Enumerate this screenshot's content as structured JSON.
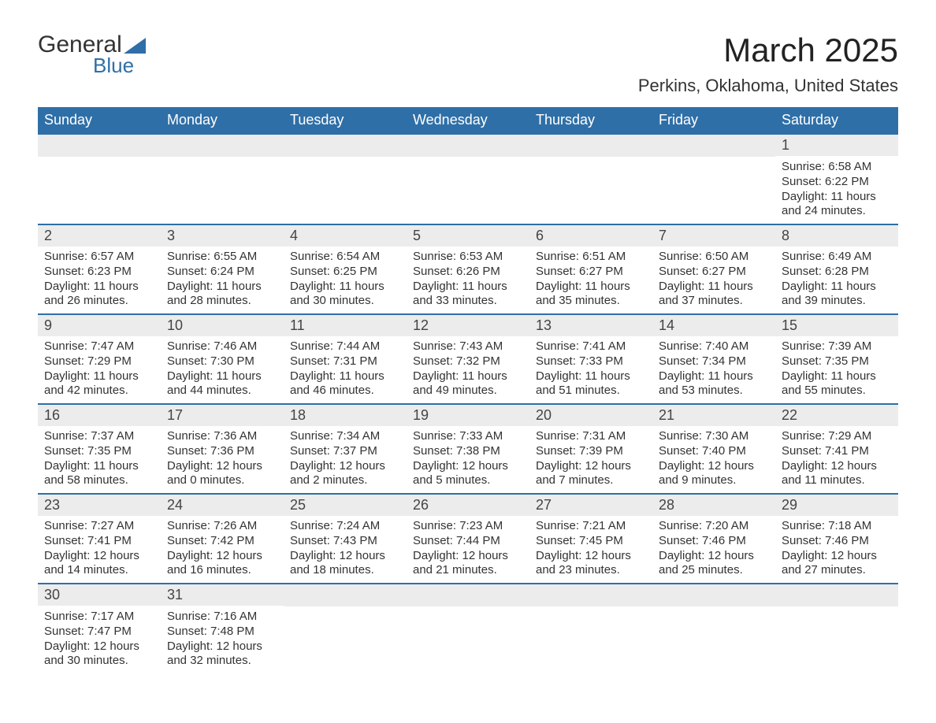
{
  "logo": {
    "text1": "General",
    "text2": "Blue",
    "accent_color": "#2f6fa7"
  },
  "header": {
    "month_title": "March 2025",
    "location": "Perkins, Oklahoma, United States"
  },
  "colors": {
    "header_bg": "#2f6fa7",
    "header_fg": "#ffffff",
    "daynum_bg": "#ececec",
    "text": "#333333",
    "border": "#2f6fa7",
    "page_bg": "#ffffff"
  },
  "typography": {
    "month_title_fontsize": 42,
    "subtitle_fontsize": 22,
    "weekday_fontsize": 18,
    "daynum_fontsize": 18,
    "body_fontsize": 15
  },
  "calendar": {
    "type": "table",
    "weekdays": [
      "Sunday",
      "Monday",
      "Tuesday",
      "Wednesday",
      "Thursday",
      "Friday",
      "Saturday"
    ],
    "weeks": [
      [
        null,
        null,
        null,
        null,
        null,
        null,
        {
          "n": "1",
          "sunrise": "Sunrise: 6:58 AM",
          "sunset": "Sunset: 6:22 PM",
          "daylight": "Daylight: 11 hours and 24 minutes."
        }
      ],
      [
        {
          "n": "2",
          "sunrise": "Sunrise: 6:57 AM",
          "sunset": "Sunset: 6:23 PM",
          "daylight": "Daylight: 11 hours and 26 minutes."
        },
        {
          "n": "3",
          "sunrise": "Sunrise: 6:55 AM",
          "sunset": "Sunset: 6:24 PM",
          "daylight": "Daylight: 11 hours and 28 minutes."
        },
        {
          "n": "4",
          "sunrise": "Sunrise: 6:54 AM",
          "sunset": "Sunset: 6:25 PM",
          "daylight": "Daylight: 11 hours and 30 minutes."
        },
        {
          "n": "5",
          "sunrise": "Sunrise: 6:53 AM",
          "sunset": "Sunset: 6:26 PM",
          "daylight": "Daylight: 11 hours and 33 minutes."
        },
        {
          "n": "6",
          "sunrise": "Sunrise: 6:51 AM",
          "sunset": "Sunset: 6:27 PM",
          "daylight": "Daylight: 11 hours and 35 minutes."
        },
        {
          "n": "7",
          "sunrise": "Sunrise: 6:50 AM",
          "sunset": "Sunset: 6:27 PM",
          "daylight": "Daylight: 11 hours and 37 minutes."
        },
        {
          "n": "8",
          "sunrise": "Sunrise: 6:49 AM",
          "sunset": "Sunset: 6:28 PM",
          "daylight": "Daylight: 11 hours and 39 minutes."
        }
      ],
      [
        {
          "n": "9",
          "sunrise": "Sunrise: 7:47 AM",
          "sunset": "Sunset: 7:29 PM",
          "daylight": "Daylight: 11 hours and 42 minutes."
        },
        {
          "n": "10",
          "sunrise": "Sunrise: 7:46 AM",
          "sunset": "Sunset: 7:30 PM",
          "daylight": "Daylight: 11 hours and 44 minutes."
        },
        {
          "n": "11",
          "sunrise": "Sunrise: 7:44 AM",
          "sunset": "Sunset: 7:31 PM",
          "daylight": "Daylight: 11 hours and 46 minutes."
        },
        {
          "n": "12",
          "sunrise": "Sunrise: 7:43 AM",
          "sunset": "Sunset: 7:32 PM",
          "daylight": "Daylight: 11 hours and 49 minutes."
        },
        {
          "n": "13",
          "sunrise": "Sunrise: 7:41 AM",
          "sunset": "Sunset: 7:33 PM",
          "daylight": "Daylight: 11 hours and 51 minutes."
        },
        {
          "n": "14",
          "sunrise": "Sunrise: 7:40 AM",
          "sunset": "Sunset: 7:34 PM",
          "daylight": "Daylight: 11 hours and 53 minutes."
        },
        {
          "n": "15",
          "sunrise": "Sunrise: 7:39 AM",
          "sunset": "Sunset: 7:35 PM",
          "daylight": "Daylight: 11 hours and 55 minutes."
        }
      ],
      [
        {
          "n": "16",
          "sunrise": "Sunrise: 7:37 AM",
          "sunset": "Sunset: 7:35 PM",
          "daylight": "Daylight: 11 hours and 58 minutes."
        },
        {
          "n": "17",
          "sunrise": "Sunrise: 7:36 AM",
          "sunset": "Sunset: 7:36 PM",
          "daylight": "Daylight: 12 hours and 0 minutes."
        },
        {
          "n": "18",
          "sunrise": "Sunrise: 7:34 AM",
          "sunset": "Sunset: 7:37 PM",
          "daylight": "Daylight: 12 hours and 2 minutes."
        },
        {
          "n": "19",
          "sunrise": "Sunrise: 7:33 AM",
          "sunset": "Sunset: 7:38 PM",
          "daylight": "Daylight: 12 hours and 5 minutes."
        },
        {
          "n": "20",
          "sunrise": "Sunrise: 7:31 AM",
          "sunset": "Sunset: 7:39 PM",
          "daylight": "Daylight: 12 hours and 7 minutes."
        },
        {
          "n": "21",
          "sunrise": "Sunrise: 7:30 AM",
          "sunset": "Sunset: 7:40 PM",
          "daylight": "Daylight: 12 hours and 9 minutes."
        },
        {
          "n": "22",
          "sunrise": "Sunrise: 7:29 AM",
          "sunset": "Sunset: 7:41 PM",
          "daylight": "Daylight: 12 hours and 11 minutes."
        }
      ],
      [
        {
          "n": "23",
          "sunrise": "Sunrise: 7:27 AM",
          "sunset": "Sunset: 7:41 PM",
          "daylight": "Daylight: 12 hours and 14 minutes."
        },
        {
          "n": "24",
          "sunrise": "Sunrise: 7:26 AM",
          "sunset": "Sunset: 7:42 PM",
          "daylight": "Daylight: 12 hours and 16 minutes."
        },
        {
          "n": "25",
          "sunrise": "Sunrise: 7:24 AM",
          "sunset": "Sunset: 7:43 PM",
          "daylight": "Daylight: 12 hours and 18 minutes."
        },
        {
          "n": "26",
          "sunrise": "Sunrise: 7:23 AM",
          "sunset": "Sunset: 7:44 PM",
          "daylight": "Daylight: 12 hours and 21 minutes."
        },
        {
          "n": "27",
          "sunrise": "Sunrise: 7:21 AM",
          "sunset": "Sunset: 7:45 PM",
          "daylight": "Daylight: 12 hours and 23 minutes."
        },
        {
          "n": "28",
          "sunrise": "Sunrise: 7:20 AM",
          "sunset": "Sunset: 7:46 PM",
          "daylight": "Daylight: 12 hours and 25 minutes."
        },
        {
          "n": "29",
          "sunrise": "Sunrise: 7:18 AM",
          "sunset": "Sunset: 7:46 PM",
          "daylight": "Daylight: 12 hours and 27 minutes."
        }
      ],
      [
        {
          "n": "30",
          "sunrise": "Sunrise: 7:17 AM",
          "sunset": "Sunset: 7:47 PM",
          "daylight": "Daylight: 12 hours and 30 minutes."
        },
        {
          "n": "31",
          "sunrise": "Sunrise: 7:16 AM",
          "sunset": "Sunset: 7:48 PM",
          "daylight": "Daylight: 12 hours and 32 minutes."
        },
        null,
        null,
        null,
        null,
        null
      ]
    ]
  }
}
